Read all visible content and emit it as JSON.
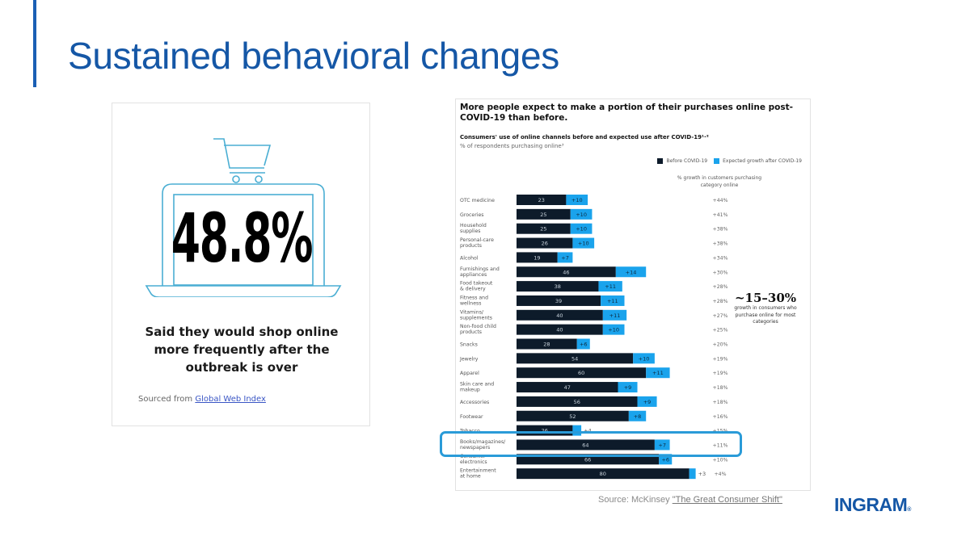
{
  "slide": {
    "title": "Sustained behavioral changes",
    "accent_color": "#1a5fb4",
    "source_prefix": "Source: McKinsey ",
    "source_link": "\"The Great Consumer Shift\"",
    "brand": "INGRAM",
    "brand_mark": "®"
  },
  "left_card": {
    "icon": "laptop-shopping-cart-icon",
    "stat": "48.8%",
    "caption": "Said they would shop online more frequently after the outbreak is over",
    "sourced_prefix": "Sourced from ",
    "sourced_link": "Global Web Index",
    "icon_color": "#4aaed3"
  },
  "chart_data": {
    "type": "bar",
    "stacked": true,
    "orientation": "horizontal",
    "headline": "More people expect to make a portion of their purchases online post-COVID-19 than before.",
    "title": "Consumers' use of online channels before and expected use after COVID-19¹·²",
    "subtitle": "% of respondents purchasing online³",
    "legend": [
      "Before COVID-19",
      "Expected growth after COVID-19"
    ],
    "legend_position": "top-right",
    "colors": {
      "before": "#0d1b2a",
      "growth": "#1aa3ec"
    },
    "growth_column_header": "% growth in customers purchasing category online",
    "xlim": [
      0,
      100
    ],
    "categories": [
      "OTC medicine",
      "Groceries",
      "Household supplies",
      "Personal-care products",
      "Alcohol",
      "Furnishings and appliances",
      "Food takeout & delivery",
      "Fitness and wellness",
      "Vitamins/ supplements",
      "Non-food child products",
      "Snacks",
      "Jewelry",
      "Apparel",
      "Skin care and makeup",
      "Accessories",
      "Footwear",
      "Tobacco",
      "Books/magazines/ newspapers",
      "Consumer electronics",
      "Entertainment at home"
    ],
    "category_lines": [
      [
        "OTC medicine"
      ],
      [
        "Groceries"
      ],
      [
        "Household",
        "supplies"
      ],
      [
        "Personal-care",
        "products"
      ],
      [
        "Alcohol"
      ],
      [
        "Furnishings and",
        "appliances"
      ],
      [
        "Food takeout",
        "& delivery"
      ],
      [
        "Fitness and",
        "wellness"
      ],
      [
        "Vitamins/",
        "supplements"
      ],
      [
        "Non-food child",
        "products"
      ],
      [
        "Snacks"
      ],
      [
        "Jewelry"
      ],
      [
        "Apparel"
      ],
      [
        "Skin care and",
        "makeup"
      ],
      [
        "Accessories"
      ],
      [
        "Footwear"
      ],
      [
        "Tobacco"
      ],
      [
        "Books/magazines/",
        "newspapers"
      ],
      [
        "Consumer",
        "electronics"
      ],
      [
        "Entertainment",
        "at home"
      ]
    ],
    "series": [
      {
        "name": "Before COVID-19",
        "values": [
          23,
          25,
          25,
          26,
          19,
          46,
          38,
          39,
          40,
          40,
          28,
          54,
          60,
          47,
          56,
          52,
          26,
          64,
          66,
          80
        ]
      },
      {
        "name": "Expected growth after COVID-19",
        "values": [
          10,
          10,
          10,
          10,
          7,
          14,
          11,
          11,
          11,
          10,
          6,
          10,
          11,
          9,
          9,
          8,
          4,
          7,
          6,
          3
        ]
      }
    ],
    "value_labels_before": [
      "23",
      "25",
      "25",
      "26",
      "19",
      "46",
      "38",
      "39",
      "40",
      "40",
      "28",
      "54",
      "60",
      "47",
      "56",
      "52",
      "26",
      "64",
      "66",
      "80"
    ],
    "value_labels_growth": [
      "+10",
      "+10",
      "+10",
      "+10",
      "+7",
      "+14",
      "+11",
      "+11",
      "+11",
      "+10",
      "+6",
      "+10",
      "+11",
      "+9",
      "+9",
      "+8",
      "+4",
      "+7",
      "+6",
      "+3"
    ],
    "growth_pct": [
      "+44%",
      "+41%",
      "+38%",
      "+38%",
      "+34%",
      "+30%",
      "+28%",
      "+28%",
      "+27%",
      "+25%",
      "+20%",
      "+19%",
      "+19%",
      "+18%",
      "+18%",
      "+16%",
      "+15%",
      "+11%",
      "+10%",
      "+4%"
    ],
    "annotation": {
      "big": "~15–30%",
      "text": "growth in consumers who purchase online for most categories"
    },
    "highlighted_category": "Books/magazines/ newspapers",
    "highlight_color": "#2a9bd8"
  }
}
